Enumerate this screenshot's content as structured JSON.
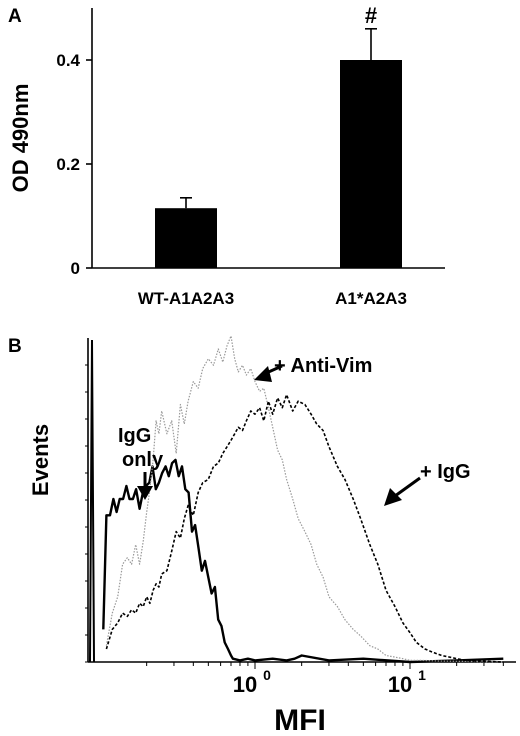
{
  "chart_data": [
    {
      "panel_label": "A",
      "type": "bar",
      "categories": [
        "WT-A1A2A3",
        "A1*A2A3"
      ],
      "values": [
        0.115,
        0.4
      ],
      "errors": [
        0.02,
        0.06
      ],
      "annotations": [
        "",
        "#"
      ],
      "ylabel": "OD 490nm",
      "ylim": [
        0,
        0.5
      ],
      "yticks": [
        "0",
        "0.2",
        "0.4"
      ],
      "bar_color": "#000000"
    },
    {
      "panel_label": "B",
      "type": "line",
      "xlabel": "MFI",
      "ylabel": "Events",
      "xscale": "log",
      "xticks": [
        "10^0",
        "10^1"
      ],
      "series": [
        {
          "label": "IgG only",
          "style": "solid",
          "color": "#000000",
          "x": [
            0.105,
            0.11,
            0.116,
            0.122,
            0.128,
            0.134,
            0.141,
            0.148,
            0.155,
            0.163,
            0.171,
            0.18,
            0.189,
            0.198,
            0.208,
            0.218,
            0.229,
            0.24,
            0.252,
            0.265,
            0.278,
            0.292,
            0.307,
            0.322,
            0.338,
            0.355,
            0.373,
            0.392,
            0.411,
            0.432,
            0.454,
            0.476,
            0.5,
            0.525,
            0.551,
            0.579,
            0.608,
            0.638,
            0.67,
            0.7,
            0.72,
            0.8,
            0.9,
            1.0,
            1.3,
            1.6,
            1.8,
            2.0,
            3,
            5,
            10,
            20,
            40
          ],
          "y": [
            0.1,
            0.45,
            0.45,
            0.5,
            0.46,
            0.5,
            0.5,
            0.54,
            0.5,
            0.5,
            0.53,
            0.47,
            0.52,
            0.54,
            0.55,
            0.6,
            0.53,
            0.55,
            0.58,
            0.6,
            0.57,
            0.61,
            0.62,
            0.57,
            0.6,
            0.53,
            0.52,
            0.4,
            0.42,
            0.35,
            0.28,
            0.31,
            0.26,
            0.21,
            0.23,
            0.13,
            0.11,
            0.06,
            0.04,
            0.02,
            0.01,
            0.005,
            0.01,
            0.005,
            0.01,
            0.005,
            0.01,
            0.02,
            0.005,
            0.01,
            0.0,
            0.005,
            0.01
          ]
        },
        {
          "label": "+ Anti-Vim",
          "style": "dotted",
          "color": "#999999",
          "x": [
            0.11,
            0.12,
            0.13,
            0.14,
            0.15,
            0.16,
            0.17,
            0.18,
            0.19,
            0.2,
            0.21,
            0.22,
            0.23,
            0.24,
            0.25,
            0.27,
            0.29,
            0.31,
            0.33,
            0.35,
            0.37,
            0.4,
            0.43,
            0.46,
            0.5,
            0.54,
            0.58,
            0.62,
            0.66,
            0.7,
            0.74,
            0.78,
            0.83,
            0.88,
            0.94,
            1.0,
            1.07,
            1.14,
            1.22,
            1.3,
            1.4,
            1.5,
            1.6,
            1.75,
            1.9,
            2.1,
            2.3,
            2.5,
            2.75,
            3.0,
            3.4,
            3.8,
            4.3,
            4.8,
            5.5,
            6.2,
            7.0,
            8.0,
            9.0,
            10.0,
            12,
            15,
            20,
            30,
            40
          ],
          "y": [
            0.05,
            0.15,
            0.2,
            0.3,
            0.32,
            0.3,
            0.36,
            0.3,
            0.37,
            0.46,
            0.53,
            0.62,
            0.74,
            0.7,
            0.77,
            0.7,
            0.74,
            0.64,
            0.79,
            0.73,
            0.8,
            0.86,
            0.84,
            0.9,
            0.93,
            0.91,
            0.96,
            0.92,
            0.97,
            1.0,
            0.93,
            0.89,
            0.91,
            0.88,
            0.9,
            0.86,
            0.83,
            0.84,
            0.78,
            0.72,
            0.65,
            0.62,
            0.56,
            0.5,
            0.44,
            0.4,
            0.36,
            0.3,
            0.26,
            0.2,
            0.17,
            0.13,
            0.1,
            0.08,
            0.05,
            0.04,
            0.02,
            0.015,
            0.01,
            0.005,
            0.005,
            0.003,
            0.002,
            0.001,
            0.0
          ]
        },
        {
          "label": "+ IgG",
          "style": "dashed",
          "color": "#000000",
          "x": [
            0.11,
            0.12,
            0.13,
            0.14,
            0.15,
            0.16,
            0.17,
            0.18,
            0.19,
            0.2,
            0.21,
            0.22,
            0.23,
            0.24,
            0.25,
            0.27,
            0.29,
            0.31,
            0.33,
            0.35,
            0.37,
            0.4,
            0.43,
            0.46,
            0.5,
            0.54,
            0.58,
            0.62,
            0.66,
            0.7,
            0.74,
            0.78,
            0.83,
            0.88,
            0.94,
            1.0,
            1.07,
            1.14,
            1.22,
            1.3,
            1.4,
            1.5,
            1.6,
            1.75,
            1.9,
            2.1,
            2.3,
            2.5,
            2.75,
            3.0,
            3.4,
            3.8,
            4.3,
            4.8,
            5.5,
            6.2,
            7.0,
            8.0,
            9.0,
            10.0,
            11.0,
            12.5,
            14.0,
            16.0,
            18.0,
            20.0,
            23,
            26,
            30,
            35,
            40
          ],
          "y": [
            0.04,
            0.1,
            0.12,
            0.15,
            0.14,
            0.16,
            0.15,
            0.18,
            0.17,
            0.2,
            0.18,
            0.22,
            0.24,
            0.23,
            0.27,
            0.28,
            0.34,
            0.4,
            0.38,
            0.44,
            0.48,
            0.45,
            0.52,
            0.55,
            0.56,
            0.6,
            0.61,
            0.64,
            0.66,
            0.68,
            0.7,
            0.72,
            0.71,
            0.74,
            0.77,
            0.76,
            0.78,
            0.74,
            0.8,
            0.76,
            0.81,
            0.78,
            0.82,
            0.77,
            0.8,
            0.79,
            0.76,
            0.73,
            0.71,
            0.66,
            0.6,
            0.56,
            0.5,
            0.44,
            0.36,
            0.3,
            0.22,
            0.17,
            0.12,
            0.09,
            0.06,
            0.04,
            0.03,
            0.02,
            0.015,
            0.01,
            0.005,
            0.003,
            0.002,
            0.001,
            0.0
          ]
        }
      ],
      "annotations": [
        {
          "text": "IgG only",
          "points_to": "IgG only"
        },
        {
          "text": "+ Anti-Vim",
          "points_to": "+ Anti-Vim"
        },
        {
          "text": "+ IgG",
          "points_to": "+ IgG"
        }
      ]
    }
  ]
}
